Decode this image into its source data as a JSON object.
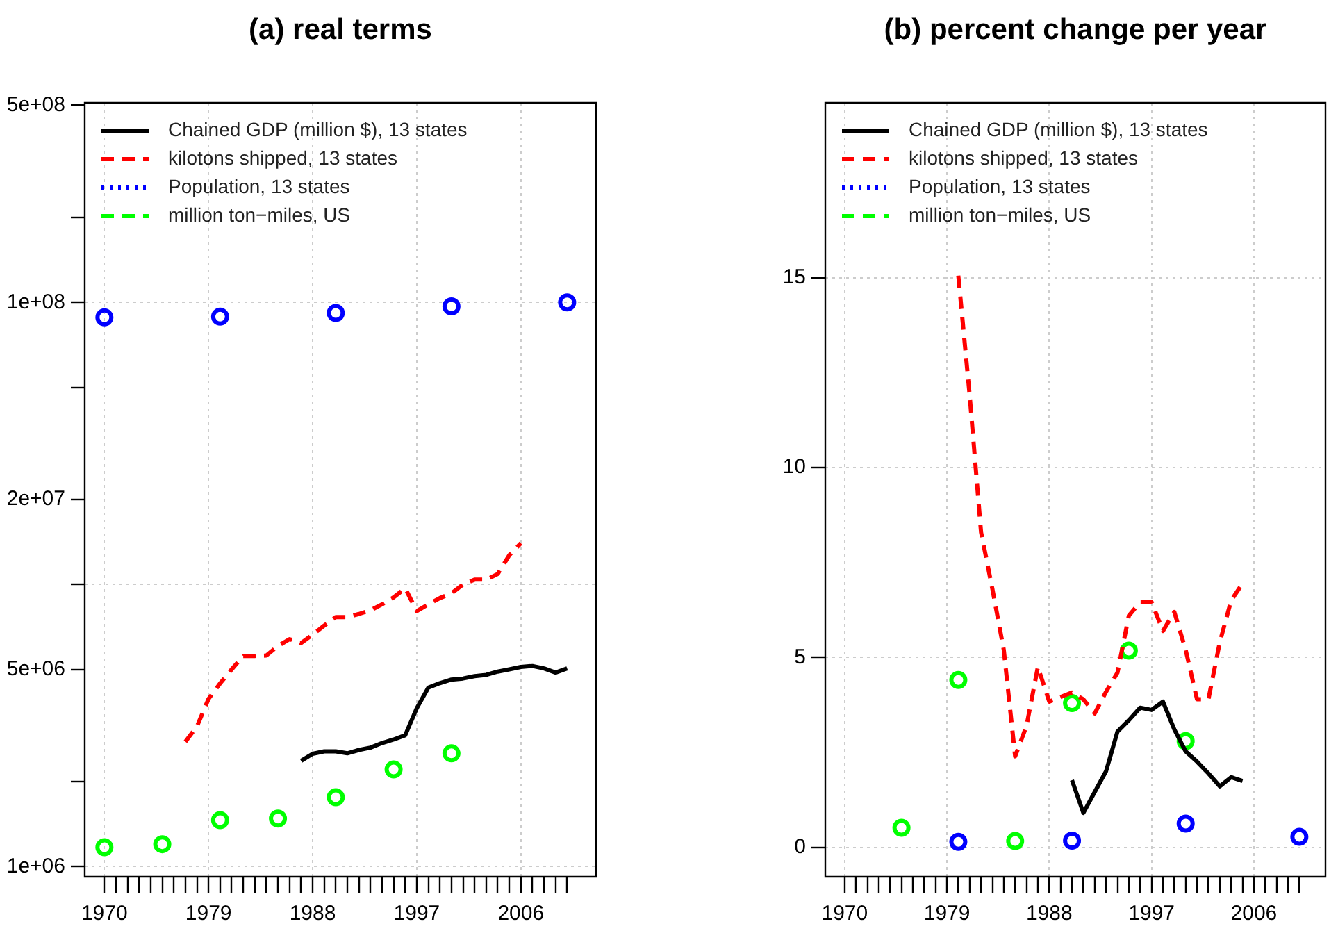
{
  "chart_data": [
    {
      "type": "line",
      "title": "(a) real terms",
      "log": "y",
      "grid": true,
      "legend": "top left",
      "xlim": [
        1968.3,
        2012.5
      ],
      "xticks": [
        1970,
        {
          "value": 1971,
          "label": null
        },
        {
          "value": 1972,
          "label": null
        },
        {
          "value": 1973,
          "label": null
        },
        {
          "value": 1974,
          "label": null
        },
        {
          "value": 1975,
          "label": null
        },
        {
          "value": 1976,
          "label": null
        },
        {
          "value": 1977,
          "label": null
        },
        {
          "value": 1978,
          "label": null
        },
        1979,
        {
          "value": 1980,
          "label": null
        },
        {
          "value": 1981,
          "label": null
        },
        {
          "value": 1982,
          "label": null
        },
        {
          "value": 1983,
          "label": null
        },
        {
          "value": 1984,
          "label": null
        },
        {
          "value": 1985,
          "label": null
        },
        {
          "value": 1986,
          "label": null
        },
        {
          "value": 1987,
          "label": null
        },
        1988,
        {
          "value": 1989,
          "label": null
        },
        {
          "value": 1990,
          "label": null
        },
        {
          "value": 1991,
          "label": null
        },
        {
          "value": 1992,
          "label": null
        },
        {
          "value": 1993,
          "label": null
        },
        {
          "value": 1994,
          "label": null
        },
        {
          "value": 1995,
          "label": null
        },
        {
          "value": 1996,
          "label": null
        },
        1997,
        {
          "value": 1998,
          "label": null
        },
        {
          "value": 1999,
          "label": null
        },
        {
          "value": 2000,
          "label": null
        },
        {
          "value": 2001,
          "label": null
        },
        {
          "value": 2002,
          "label": null
        },
        {
          "value": 2003,
          "label": null
        },
        {
          "value": 2004,
          "label": null
        },
        {
          "value": 2005,
          "label": null
        },
        2006,
        {
          "value": 2007,
          "label": null
        },
        {
          "value": 2008,
          "label": null
        },
        {
          "value": 2009,
          "label": null
        },
        {
          "value": 2010,
          "label": null
        }
      ],
      "ylim": [
        920000,
        510000000
      ],
      "yticks": [
        {
          "value": 1000000,
          "label": "1e+06"
        },
        {
          "value": 2000000,
          "label": null
        },
        {
          "value": 5000000,
          "label": "5e+06"
        },
        {
          "value": 10000000,
          "label": null
        },
        {
          "value": 20000000,
          "label": "2e+07"
        },
        {
          "value": 50000000,
          "label": null
        },
        {
          "value": 100000000,
          "label": "1e+08"
        },
        {
          "value": 200000000,
          "label": null
        },
        {
          "value": 500000000,
          "label": "5e+08"
        }
      ],
      "series": [
        {
          "name": "Chained GDP (million $), 13 states",
          "color": "#000000",
          "type": "line",
          "line_style": "solid",
          "x": [
            1987,
            1988,
            1989,
            1990,
            1991,
            1992,
            1993,
            1994,
            1995,
            1996,
            1997,
            1998,
            1999,
            2000,
            2001,
            2002,
            2003,
            2004,
            2005,
            2006,
            2007,
            2008,
            2009,
            2010
          ],
          "values": [
            2370000,
            2510000,
            2560000,
            2560000,
            2520000,
            2590000,
            2640000,
            2740000,
            2820000,
            2920000,
            3640000,
            4310000,
            4470000,
            4600000,
            4640000,
            4730000,
            4780000,
            4910000,
            5000000,
            5100000,
            5140000,
            5040000,
            4870000,
            5040000
          ]
        },
        {
          "name": "kilotons shipped, 13 states",
          "color": "#ff0000",
          "type": "line",
          "line_style": "dashed",
          "x": [
            1977,
            1978,
            1979,
            1980,
            1981,
            1982,
            1983,
            1984,
            1985,
            1986,
            1987,
            1988,
            1989,
            1990,
            1991,
            1992,
            1993,
            1994,
            1995,
            1996,
            1997,
            1998,
            1999,
            2000,
            2001,
            2002,
            2003,
            2004,
            2005,
            2006
          ],
          "values": [
            2770000,
            3140000,
            3930000,
            4460000,
            5000000,
            5580000,
            5580000,
            5600000,
            6050000,
            6400000,
            6200000,
            6640000,
            7150000,
            7660000,
            7660000,
            7860000,
            8100000,
            8500000,
            9000000,
            9700000,
            8050000,
            8500000,
            8950000,
            9300000,
            10000000,
            10400000,
            10400000,
            10900000,
            12700000,
            14000000
          ]
        },
        {
          "name": "Population, 13 states",
          "color": "#0000ff",
          "type": "scatter",
          "marker": "circle",
          "line_style": "dotted",
          "x": [
            1970,
            1980,
            1990,
            2000,
            2010
          ],
          "values": [
            88500000,
            89000000,
            91700000,
            96800000,
            100000000
          ]
        },
        {
          "name": "million ton−miles, US",
          "color": "#00ff00",
          "type": "scatter",
          "marker": "circle",
          "line_style": "dashed",
          "x": [
            1970,
            1975,
            1980,
            1985,
            1990,
            1995,
            2000
          ],
          "values": [
            1170000,
            1200000,
            1460000,
            1480000,
            1760000,
            2210000,
            2520000
          ]
        }
      ]
    },
    {
      "type": "line",
      "title": "(b) percent change per year",
      "grid": true,
      "legend": "top left",
      "xlim": [
        1968.3,
        2012.3
      ],
      "xticks": [
        1970,
        {
          "value": 1971,
          "label": null
        },
        {
          "value": 1972,
          "label": null
        },
        {
          "value": 1973,
          "label": null
        },
        {
          "value": 1974,
          "label": null
        },
        {
          "value": 1975,
          "label": null
        },
        {
          "value": 1976,
          "label": null
        },
        {
          "value": 1977,
          "label": null
        },
        {
          "value": 1978,
          "label": null
        },
        1979,
        {
          "value": 1980,
          "label": null
        },
        {
          "value": 1981,
          "label": null
        },
        {
          "value": 1982,
          "label": null
        },
        {
          "value": 1983,
          "label": null
        },
        {
          "value": 1984,
          "label": null
        },
        {
          "value": 1985,
          "label": null
        },
        {
          "value": 1986,
          "label": null
        },
        {
          "value": 1987,
          "label": null
        },
        1988,
        {
          "value": 1989,
          "label": null
        },
        {
          "value": 1990,
          "label": null
        },
        {
          "value": 1991,
          "label": null
        },
        {
          "value": 1992,
          "label": null
        },
        {
          "value": 1993,
          "label": null
        },
        {
          "value": 1994,
          "label": null
        },
        {
          "value": 1995,
          "label": null
        },
        {
          "value": 1996,
          "label": null
        },
        1997,
        {
          "value": 1998,
          "label": null
        },
        {
          "value": 1999,
          "label": null
        },
        {
          "value": 2000,
          "label": null
        },
        {
          "value": 2001,
          "label": null
        },
        {
          "value": 2002,
          "label": null
        },
        {
          "value": 2003,
          "label": null
        },
        {
          "value": 2004,
          "label": null
        },
        {
          "value": 2005,
          "label": null
        },
        2006,
        {
          "value": 2007,
          "label": null
        },
        {
          "value": 2008,
          "label": null
        },
        {
          "value": 2009,
          "label": null
        },
        {
          "value": 2010,
          "label": null
        }
      ],
      "ylim": [
        -0.77,
        19.6
      ],
      "yticks": [
        0,
        5,
        10,
        15
      ],
      "series": [
        {
          "name": "Chained GDP (million $), 13 states",
          "color": "#000000",
          "type": "line",
          "line_style": "solid",
          "x": [
            1990,
            1991,
            1992,
            1993,
            1994,
            1995,
            1996,
            1997,
            1998,
            1999,
            2000,
            2001,
            2002,
            2003,
            2004,
            2005
          ],
          "values": [
            1.77,
            0.91,
            1.46,
            2.01,
            3.05,
            3.35,
            3.68,
            3.62,
            3.84,
            3.11,
            2.53,
            2.26,
            1.95,
            1.61,
            1.85,
            1.75
          ]
        },
        {
          "name": "kilotons shipped, 13 states",
          "color": "#ff0000",
          "type": "line",
          "line_style": "dashed",
          "x": [
            1980,
            1981,
            1982,
            1983,
            1984,
            1985,
            1986,
            1987,
            1988,
            1989,
            1990,
            1991,
            1992,
            1993,
            1994,
            1995,
            1996,
            1997,
            1998,
            1999,
            2000,
            2001,
            2002,
            2003,
            2004,
            2005
          ],
          "values": [
            15.05,
            11.9,
            8.3,
            6.8,
            5.2,
            2.4,
            3.2,
            4.75,
            3.84,
            3.96,
            4.08,
            3.9,
            3.53,
            4.1,
            4.6,
            6.1,
            6.46,
            6.46,
            5.7,
            6.2,
            5.2,
            3.9,
            3.9,
            5.4,
            6.5,
            6.95
          ]
        },
        {
          "name": "Population, 13 states",
          "color": "#0000ff",
          "type": "scatter",
          "marker": "circle",
          "line_style": "dotted",
          "x": [
            1980,
            1990,
            2000,
            2010
          ],
          "values": [
            0.15,
            0.18,
            0.63,
            0.28
          ]
        },
        {
          "name": "million ton−miles, US",
          "color": "#00ff00",
          "type": "scatter",
          "marker": "circle",
          "line_style": "dashed",
          "x": [
            1975,
            1980,
            1985,
            1990,
            1995,
            2000
          ],
          "values": [
            0.52,
            4.41,
            0.17,
            3.8,
            5.18,
            2.8
          ]
        }
      ]
    }
  ]
}
